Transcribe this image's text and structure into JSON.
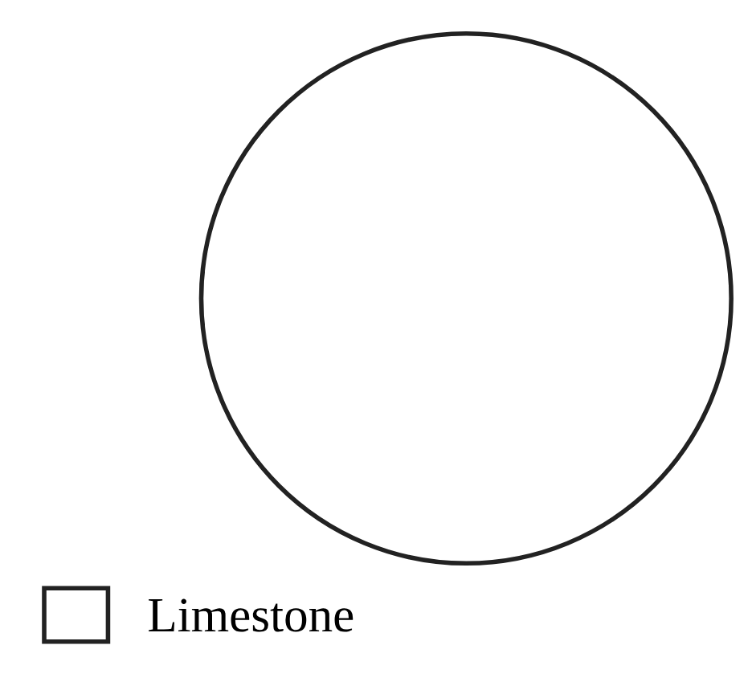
{
  "chart_data": {
    "type": "pie",
    "categories": [
      "Limestone"
    ],
    "values": [
      100
    ],
    "colors": [
      "#ffffff"
    ],
    "legend": "bottom left"
  }
}
